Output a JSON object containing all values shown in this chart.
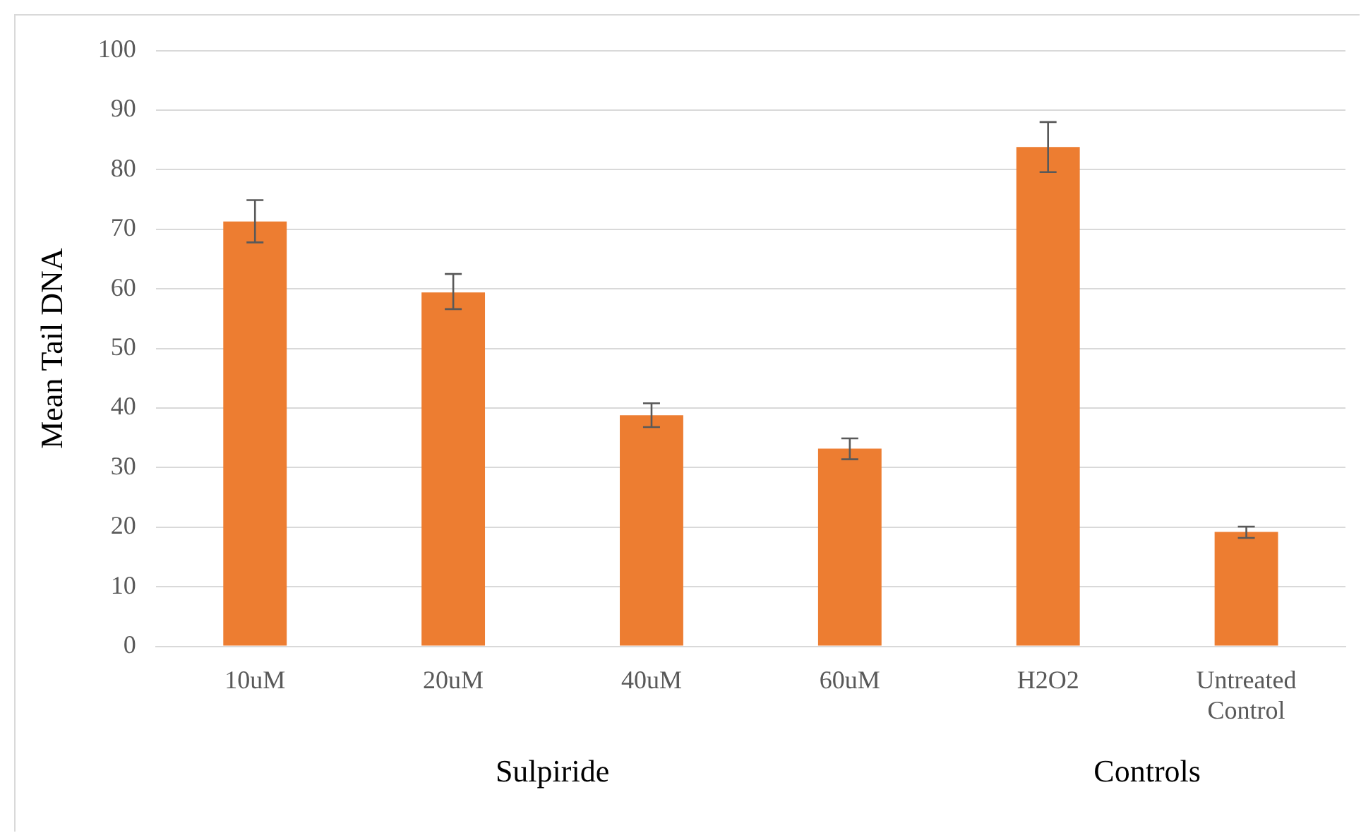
{
  "chart_data": {
    "type": "bar",
    "ylabel": "Mean Tail DNA",
    "categories": [
      "10uM",
      "20uM",
      "40uM",
      "60uM",
      "H2O2",
      "Untreated Control"
    ],
    "values": [
      71.3,
      59.4,
      38.8,
      33.2,
      83.8,
      19.2
    ],
    "errors": [
      [
        67.8,
        74.9
      ],
      [
        56.6,
        62.5
      ],
      [
        36.8,
        40.8
      ],
      [
        31.4,
        34.9
      ],
      [
        79.6,
        88.0
      ],
      [
        18.2,
        20.1
      ]
    ],
    "color": "#ed7d31",
    "ylim": [
      0,
      100
    ],
    "yticks": [
      0,
      10,
      20,
      30,
      40,
      50,
      60,
      70,
      80,
      90,
      100
    ],
    "grid": "y",
    "legend": false,
    "annotations": [
      "Sulpiride",
      "Controls"
    ]
  }
}
